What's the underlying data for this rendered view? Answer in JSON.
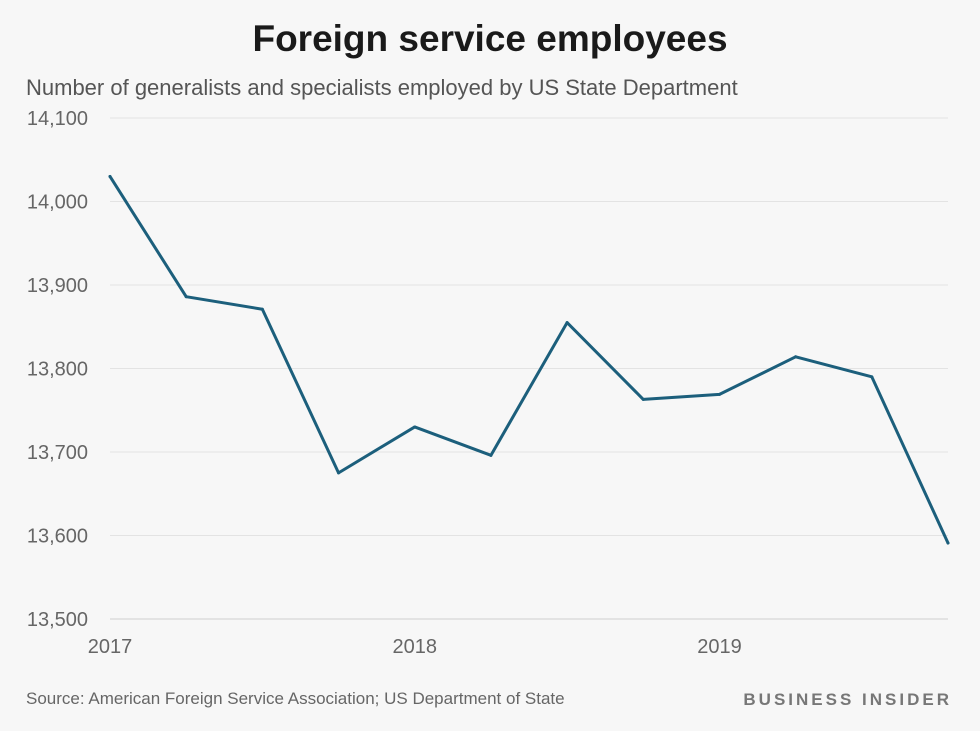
{
  "chart_data": {
    "type": "line",
    "title": "Foreign service employees",
    "subtitle": "Number of generalists and specialists employed by US State Department",
    "xlabel": "",
    "ylabel": "",
    "xlim": [
      2017,
      2019.75
    ],
    "ylim": [
      13500,
      14100
    ],
    "y_ticks": [
      13500,
      13600,
      13700,
      13800,
      13900,
      14000,
      14100
    ],
    "y_tick_labels": [
      "13,500",
      "13,600",
      "13,700",
      "13,800",
      "13,900",
      "14,000",
      "14,100"
    ],
    "x_ticks": [
      2017,
      2018,
      2019
    ],
    "x_tick_labels": [
      "2017",
      "2018",
      "2019"
    ],
    "grid": true,
    "series": [
      {
        "name": "Foreign service employees",
        "color": "#1c5f7c",
        "x": [
          2017,
          2017.25,
          2017.5,
          2017.75,
          2018,
          2018.25,
          2018.5,
          2018.75,
          2019,
          2019.25,
          2019.5,
          2019.75
        ],
        "values": [
          14030,
          13886,
          13871,
          13675,
          13730,
          13696,
          13855,
          13763,
          13769,
          13814,
          13790,
          13591
        ]
      }
    ]
  },
  "footer": {
    "source": "Source: American Foreign Service Association; US Department of State",
    "brand": "BUSINESS INSIDER"
  }
}
